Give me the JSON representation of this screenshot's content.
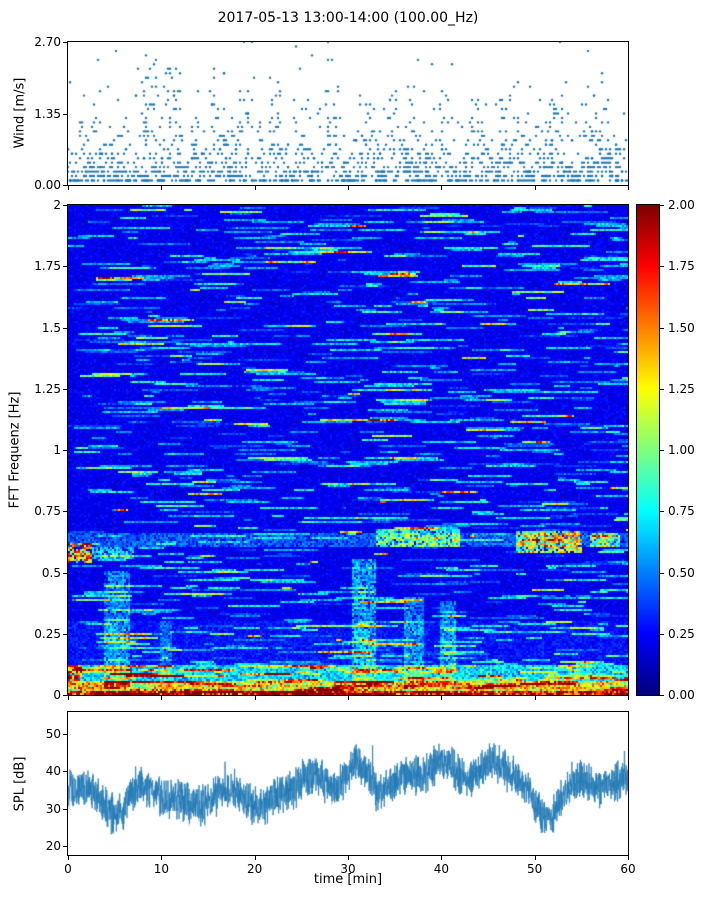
{
  "title": "2017-05-13 13:00-14:00 (100.00_Hz)",
  "axis_color": "#000000",
  "chart_data": [
    {
      "type": "scatter",
      "name": "wind-speed",
      "ylabel": "Wind [m/s]",
      "ylim": [
        0,
        2.7
      ],
      "xlim": [
        0,
        60
      ],
      "yticks": [
        {
          "v": 0,
          "label": "0.00"
        },
        {
          "v": 1.35,
          "label": "1.35"
        },
        {
          "v": 2.7,
          "label": "2.70"
        }
      ],
      "xticks_unlabeled": [
        0,
        10,
        20,
        30,
        40,
        50,
        60
      ],
      "color": "#1f77b4",
      "marker_size": 1.2,
      "gen": {
        "seed": 11,
        "n": 1650,
        "exp_mean": 0.42,
        "x_step": 0.2143,
        "y_step": 0.0844,
        "max": 2.7,
        "peaks": [
          {
            "t": 8.5,
            "a": 2.7
          },
          {
            "t": 11.2,
            "a": 2.25
          },
          {
            "t": 16,
            "a": 2.35
          },
          {
            "t": 19,
            "a": 1.8
          },
          {
            "t": 22,
            "a": 1.9
          },
          {
            "t": 28.5,
            "a": 1.85
          },
          {
            "t": 32,
            "a": 1.6
          },
          {
            "t": 35,
            "a": 1.9
          },
          {
            "t": 40,
            "a": 2.0
          },
          {
            "t": 44,
            "a": 1.7
          },
          {
            "t": 47.5,
            "a": 1.95
          },
          {
            "t": 52,
            "a": 1.6
          },
          {
            "t": 57,
            "a": 2.1
          }
        ]
      }
    },
    {
      "type": "heatmap",
      "name": "fft-spectrogram",
      "ylabel": "FFT Frequenz [Hz]",
      "ylim": [
        0,
        2
      ],
      "xlim": [
        0,
        60
      ],
      "yticks": [
        {
          "v": 0,
          "label": "0"
        },
        {
          "v": 0.25,
          "label": "0.25"
        },
        {
          "v": 0.5,
          "label": "0.5"
        },
        {
          "v": 0.75,
          "label": "0.75"
        },
        {
          "v": 1,
          "label": "1"
        },
        {
          "v": 1.25,
          "label": "1.25"
        },
        {
          "v": 1.5,
          "label": "1.5"
        },
        {
          "v": 1.75,
          "label": "1.75"
        },
        {
          "v": 2,
          "label": "2"
        }
      ],
      "colormap": "jet",
      "clim": [
        0,
        2
      ],
      "colorbar_ticks": [
        {
          "v": 0,
          "label": "0.00"
        },
        {
          "v": 0.25,
          "label": "0.25"
        },
        {
          "v": 0.5,
          "label": "0.50"
        },
        {
          "v": 0.75,
          "label": "0.75"
        },
        {
          "v": 1,
          "label": "1.00"
        },
        {
          "v": 1.25,
          "label": "1.25"
        },
        {
          "v": 1.5,
          "label": "1.50"
        },
        {
          "v": 1.75,
          "label": "1.75"
        },
        {
          "v": 2,
          "label": "2.00"
        }
      ],
      "gen": {
        "seed": 5,
        "nx": 280,
        "ny": 245,
        "features": [
          {
            "t": [
              0,
              2.5
            ],
            "f": [
              0.54,
              0.62
            ],
            "amp": 1.15
          },
          {
            "t": [
              0,
              1.5
            ],
            "f": [
              0.05,
              0.12
            ],
            "amp": 0.9
          },
          {
            "t": [
              2.5,
              7
            ],
            "f": [
              0.55,
              0.6
            ],
            "amp": 0.45
          },
          {
            "t": [
              0,
              60
            ],
            "f": [
              0.6,
              0.66
            ],
            "amp": 0.22
          },
          {
            "t": [
              48,
              55
            ],
            "f": [
              0.58,
              0.67
            ],
            "amp": 0.85
          },
          {
            "t": [
              33,
              42
            ],
            "f": [
              0.6,
              0.68
            ],
            "amp": 0.55
          },
          {
            "t": [
              56,
              59
            ],
            "f": [
              0.6,
              0.66
            ],
            "amp": 0.6
          },
          {
            "t": [
              30.5,
              33
            ],
            "f": [
              0.02,
              0.55
            ],
            "amp": 0.35
          },
          {
            "t": [
              4,
              6.5
            ],
            "f": [
              0.02,
              0.5
            ],
            "amp": 0.3
          },
          {
            "t": [
              36,
              38
            ],
            "f": [
              0.02,
              0.4
            ],
            "amp": 0.28
          },
          {
            "t": [
              40,
              41.5
            ],
            "f": [
              0.02,
              0.38
            ],
            "amp": 0.28
          },
          {
            "t": [
              10,
              11
            ],
            "f": [
              0.02,
              0.3
            ],
            "amp": 0.2
          }
        ]
      }
    },
    {
      "type": "line",
      "name": "spl",
      "ylabel": "SPL [dB]",
      "xlabel": "time [min]",
      "ylim": [
        17.5,
        56
      ],
      "xlim": [
        0,
        60
      ],
      "yticks": [
        {
          "v": 20,
          "label": "20"
        },
        {
          "v": 30,
          "label": "30"
        },
        {
          "v": 40,
          "label": "40"
        },
        {
          "v": 50,
          "label": "50"
        }
      ],
      "xticks": [
        {
          "v": 0,
          "label": "0"
        },
        {
          "v": 10,
          "label": "10"
        },
        {
          "v": 20,
          "label": "20"
        },
        {
          "v": 30,
          "label": "30"
        },
        {
          "v": 40,
          "label": "40"
        },
        {
          "v": 50,
          "label": "50"
        },
        {
          "v": 60,
          "label": "60"
        }
      ],
      "color": "#1f77b4",
      "gen": {
        "seed": 23,
        "n": 3000,
        "base": 34.5,
        "fast": 4.2,
        "sines": [
          [
            2.2,
            21,
            0.5
          ],
          [
            1.5,
            9,
            2.1
          ],
          [
            1.1,
            4.7,
            4.0
          ]
        ],
        "bumps": [
          {
            "t": 31,
            "w": 1.2,
            "a": 9
          },
          {
            "t": 37.5,
            "w": 2.5,
            "a": 5
          },
          {
            "t": 40,
            "w": 1.5,
            "a": 6
          },
          {
            "t": 47,
            "w": 2,
            "a": 5
          },
          {
            "t": 57,
            "w": 2.2,
            "a": 6
          },
          {
            "t": 5.2,
            "w": 1.5,
            "a": -6
          },
          {
            "t": 51,
            "w": 1.2,
            "a": -8
          },
          {
            "t": 21,
            "w": 1.5,
            "a": -4
          }
        ]
      }
    }
  ]
}
